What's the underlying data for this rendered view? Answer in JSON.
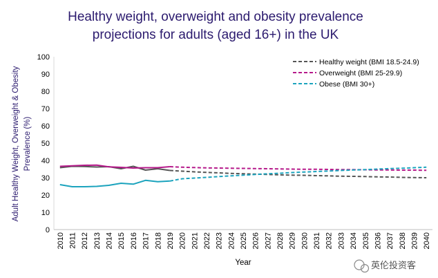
{
  "chart_data": {
    "type": "line",
    "title_line1": "Healthy weight, overweight and obesity prevalence",
    "title_line2": "projections for adults (aged 16+) in the UK",
    "xlabel": "Year",
    "ylabel_line1": "Adult  Healthy Weight, Overweight & Obesity",
    "ylabel_line2": "Prevalence (%)",
    "ylim": [
      0,
      100
    ],
    "yticks": [
      0,
      10,
      20,
      30,
      40,
      50,
      60,
      70,
      80,
      90,
      100
    ],
    "x": [
      2010,
      2011,
      2012,
      2013,
      2014,
      2015,
      2016,
      2017,
      2018,
      2019,
      2020,
      2021,
      2022,
      2023,
      2024,
      2025,
      2026,
      2027,
      2028,
      2029,
      2030,
      2031,
      2032,
      2033,
      2034,
      2035,
      2036,
      2037,
      2038,
      2039,
      2040
    ],
    "observed_until": 2019,
    "legend_position": "top-right",
    "series": [
      {
        "name": "Healthy weight (BMI 18.5-24.9)",
        "color": "#555555",
        "observed": [
          35.8,
          36.6,
          36.5,
          36.2,
          36.4,
          35.2,
          36.6,
          34.4,
          35.2,
          34.2
        ],
        "projected": [
          34.2,
          33.8,
          33.4,
          33.1,
          32.8,
          32.5,
          32.3,
          32.1,
          31.9,
          31.7,
          31.5,
          31.4,
          31.2,
          31.1,
          30.9,
          30.8,
          30.7,
          30.5,
          30.4,
          30.2,
          30.1,
          30.0
        ]
      },
      {
        "name": "Overweight (BMI 25-29.9)",
        "color": "#b5198a",
        "observed": [
          36.6,
          36.9,
          37.2,
          37.3,
          36.3,
          36.0,
          35.6,
          35.8,
          35.8,
          36.4
        ],
        "projected": [
          36.4,
          36.1,
          35.9,
          35.7,
          35.6,
          35.5,
          35.4,
          35.3,
          35.2,
          35.1,
          35.0,
          34.9,
          34.9,
          34.8,
          34.7,
          34.7,
          34.6,
          34.5,
          34.5,
          34.4,
          34.4,
          34.3
        ]
      },
      {
        "name": "Obese (BMI 30+)",
        "color": "#1ba3bd",
        "observed": [
          26.0,
          24.8,
          24.8,
          25.0,
          25.6,
          26.8,
          26.3,
          28.5,
          27.7,
          28.1
        ],
        "projected": [
          28.1,
          29.4,
          29.8,
          30.2,
          30.7,
          31.1,
          31.5,
          31.9,
          32.3,
          32.6,
          33.0,
          33.3,
          33.6,
          33.9,
          34.2,
          34.5,
          34.7,
          35.0,
          35.3,
          35.5,
          35.8,
          36.1
        ]
      }
    ]
  },
  "watermark": "英伦投资客"
}
